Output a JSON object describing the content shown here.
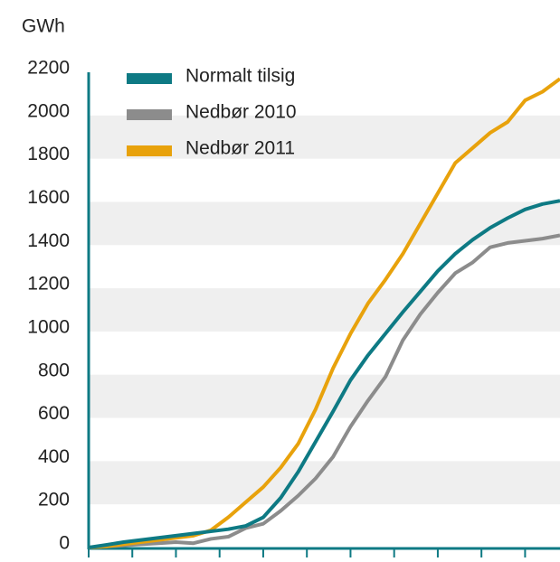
{
  "chart_data": {
    "type": "line",
    "y_axis_label": "GWh",
    "x": [
      0,
      2,
      4,
      6,
      8,
      10,
      12,
      14,
      16,
      18,
      20,
      22,
      24,
      26,
      28,
      30,
      32,
      34,
      36,
      38,
      40,
      42,
      44,
      46,
      48,
      50,
      52,
      54
    ],
    "series": [
      {
        "name": "Normalt tilsig",
        "color": "#0e7a84",
        "values": [
          0,
          12,
          25,
          35,
          45,
          55,
          65,
          75,
          85,
          100,
          140,
          230,
          350,
          490,
          630,
          775,
          890,
          990,
          1090,
          1185,
          1280,
          1360,
          1425,
          1480,
          1525,
          1565,
          1590,
          1605
        ]
      },
      {
        "name": "Nedbør 2010",
        "color": "#8c8c8c",
        "values": [
          0,
          5,
          10,
          15,
          20,
          25,
          20,
          40,
          50,
          90,
          110,
          170,
          240,
          320,
          420,
          560,
          680,
          790,
          960,
          1080,
          1180,
          1270,
          1320,
          1390,
          1410,
          1420,
          1430,
          1445
        ]
      },
      {
        "name": "Nedbør 2011",
        "color": "#e8a20c",
        "values": [
          0,
          5,
          15,
          25,
          35,
          45,
          55,
          80,
          140,
          210,
          280,
          370,
          480,
          640,
          830,
          990,
          1130,
          1240,
          1360,
          1500,
          1640,
          1780,
          1850,
          1920,
          1970,
          2070,
          2110,
          2170
        ]
      }
    ],
    "xlim": [
      0,
      54
    ],
    "xticks": [
      0,
      5,
      10,
      15,
      20,
      25,
      30,
      35,
      40,
      45,
      50
    ],
    "ylim": [
      0,
      2200
    ],
    "yticks": [
      0,
      200,
      400,
      600,
      800,
      1000,
      1200,
      1400,
      1600,
      1800,
      2000,
      2200
    ],
    "grid": "bands",
    "legend": "top-left"
  }
}
